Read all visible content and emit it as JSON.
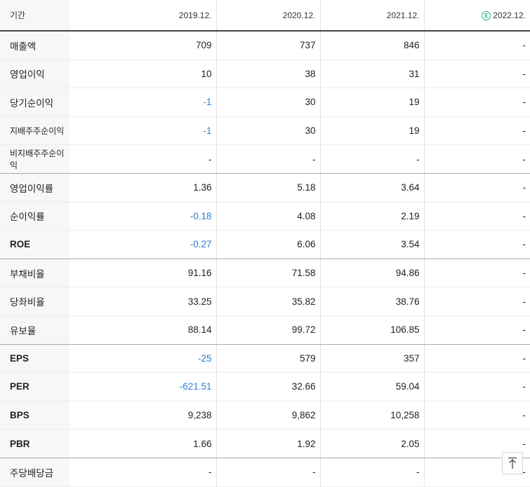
{
  "header": {
    "period_label": "기간",
    "years": [
      "2019.12.",
      "2020.12.",
      "2021.12.",
      "2022.12."
    ],
    "estimate_badge": "E"
  },
  "rows": [
    {
      "label": "매출액",
      "values": [
        "709",
        "737",
        "846",
        "-"
      ]
    },
    {
      "label": "영업이익",
      "values": [
        "10",
        "38",
        "31",
        "-"
      ]
    },
    {
      "label": "당기순이익",
      "values": [
        "-1",
        "30",
        "19",
        "-"
      ]
    },
    {
      "label": "지배주주순이익",
      "values": [
        "-1",
        "30",
        "19",
        "-"
      ]
    },
    {
      "label": "비지배주주순이익",
      "values": [
        "-",
        "-",
        "-",
        "-"
      ]
    },
    {
      "label": "영업이익률",
      "values": [
        "1.36",
        "5.18",
        "3.64",
        "-"
      ]
    },
    {
      "label": "순이익률",
      "values": [
        "-0.18",
        "4.08",
        "2.19",
        "-"
      ]
    },
    {
      "label": "ROE",
      "values": [
        "-0.27",
        "6.06",
        "3.54",
        "-"
      ]
    },
    {
      "label": "부채비율",
      "values": [
        "91.16",
        "71.58",
        "94.86",
        "-"
      ]
    },
    {
      "label": "당좌비율",
      "values": [
        "33.25",
        "35.82",
        "38.76",
        "-"
      ]
    },
    {
      "label": "유보율",
      "values": [
        "88.14",
        "99.72",
        "106.85",
        "-"
      ]
    },
    {
      "label": "EPS",
      "values": [
        "-25",
        "579",
        "357",
        "-"
      ]
    },
    {
      "label": "PER",
      "values": [
        "-621.51",
        "32.66",
        "59.04",
        "-"
      ]
    },
    {
      "label": "BPS",
      "values": [
        "9,238",
        "9,862",
        "10,258",
        "-"
      ]
    },
    {
      "label": "PBR",
      "values": [
        "1.66",
        "1.92",
        "2.05",
        "-"
      ]
    },
    {
      "label": "주당배당금",
      "values": [
        "-",
        "-",
        "-",
        "-"
      ]
    }
  ],
  "colors": {
    "negative": "#2f7fd0",
    "estimate_badge": "#1db37a"
  },
  "scroll_top_icon": "arrow-up-icon"
}
